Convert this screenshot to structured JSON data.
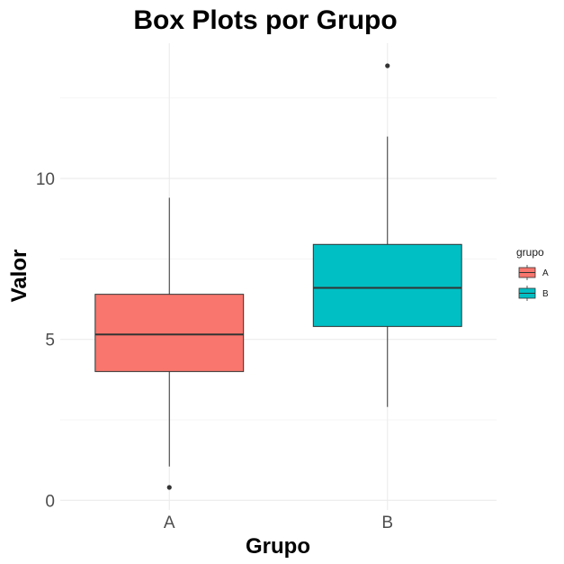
{
  "chart_data": {
    "type": "box",
    "title": "Box Plots por Grupo",
    "xlabel": "Grupo",
    "ylabel": "Valor",
    "categories": [
      "A",
      "B"
    ],
    "ylim": [
      -0.3,
      14.2
    ],
    "y_ticks": [
      0,
      5,
      10
    ],
    "grid": true,
    "legend": {
      "title": "grupo",
      "position": "right",
      "entries": [
        "A",
        "B"
      ]
    },
    "series": [
      {
        "name": "A",
        "color": "#F8766D",
        "whisker_low": 1.05,
        "q1": 4.0,
        "median": 5.15,
        "q3": 6.4,
        "whisker_high": 9.4,
        "outliers": [
          0.4
        ]
      },
      {
        "name": "B",
        "color": "#00BFC4",
        "whisker_low": 2.9,
        "q1": 5.4,
        "median": 6.6,
        "q3": 7.95,
        "whisker_high": 11.3,
        "outliers": [
          13.5
        ]
      }
    ]
  }
}
